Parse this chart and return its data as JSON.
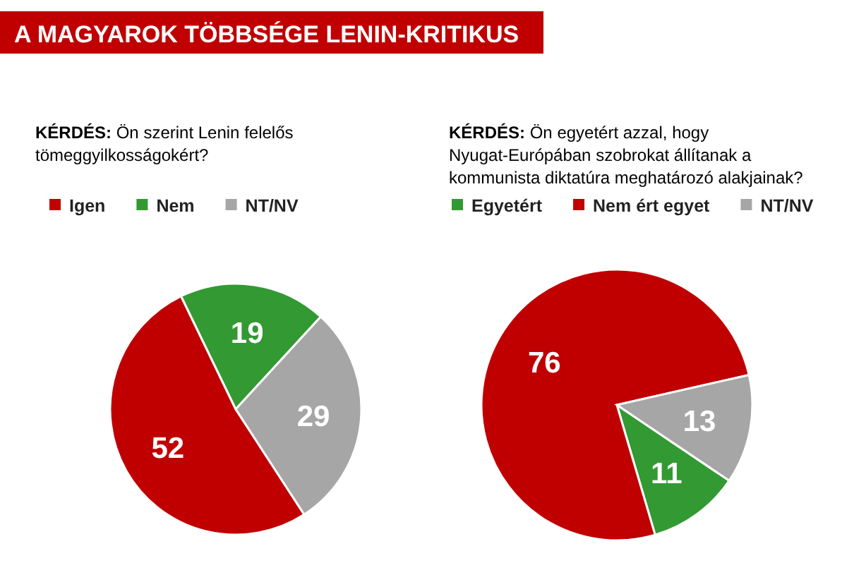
{
  "chart_data": [
    {
      "type": "pie",
      "title": "A MAGYAROK TÖBBSÉGE LENIN-KRITIKUS",
      "subtitle": "KÉRDÉS:  Ön szerint Lenin felelős tömeggyilkosságokért?",
      "categories": [
        "Igen",
        "Nem",
        "NT/NV"
      ],
      "values": [
        52,
        19,
        29
      ],
      "colors": [
        "#c00000",
        "#339933",
        "#a6a6a6"
      ],
      "legend": "top",
      "data_labels": true
    },
    {
      "type": "pie",
      "subtitle": "KÉRDÉS:  Ön egyetért azzal, hogy Nyugat-Európában szobrokat állítanak a kommunista diktatúra meghatározó alakjainak?",
      "categories": [
        "Egyetért",
        "Nem ért egyet",
        "NT/NV"
      ],
      "values": [
        11,
        76,
        13
      ],
      "colors": [
        "#339933",
        "#c00000",
        "#a6a6a6"
      ],
      "legend": "top",
      "data_labels": true
    }
  ]
}
